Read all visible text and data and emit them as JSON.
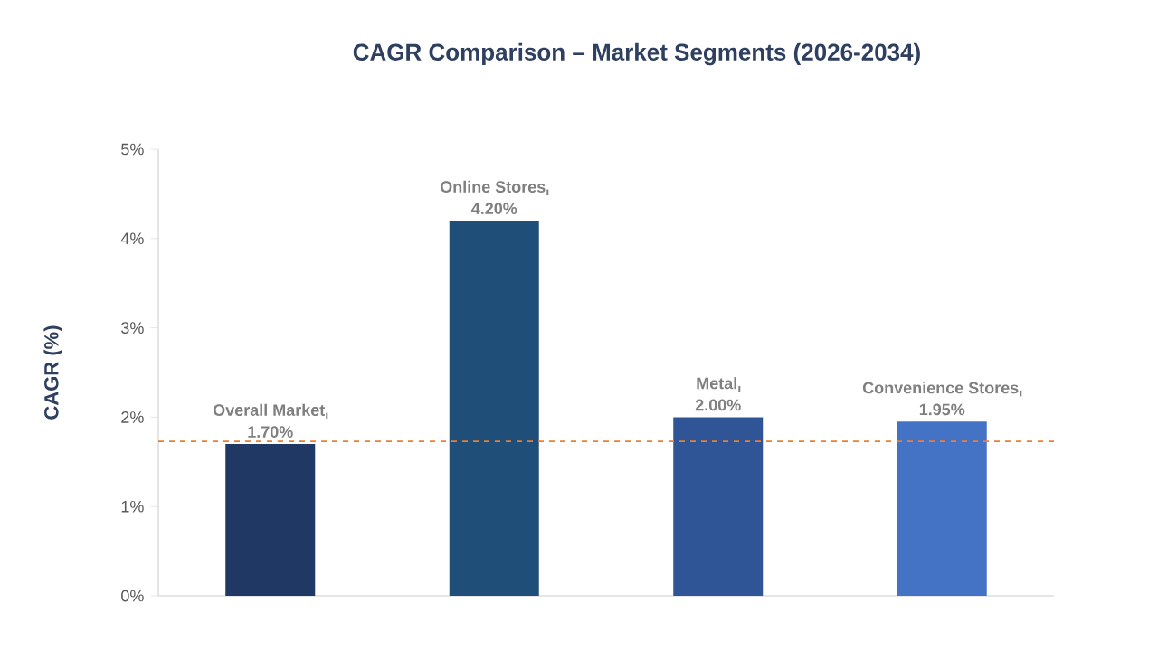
{
  "chart_data": {
    "type": "bar",
    "title": "CAGR Comparison – Market Segments (2026-2034)",
    "ylabel": "CAGR (%)",
    "categories": [
      "Overall Market",
      "Online Stores",
      "Metal",
      "Convenience Stores"
    ],
    "values": [
      1.7,
      4.2,
      2.0,
      1.95
    ],
    "value_labels": [
      "1.70%",
      "4.20%",
      "2.00%",
      "1.95%"
    ],
    "colors": [
      "#1f3864",
      "#1f4e79",
      "#2f5597",
      "#4472c4"
    ],
    "ylim": [
      0,
      5
    ],
    "yticks": [
      {
        "value": 0,
        "label": "0%"
      },
      {
        "value": 1,
        "label": "1%"
      },
      {
        "value": 2,
        "label": "2%"
      },
      {
        "value": 3,
        "label": "3%"
      },
      {
        "value": 4,
        "label": "4%"
      },
      {
        "value": 5,
        "label": "5%"
      }
    ],
    "ref_lines": [
      {
        "axis": "y",
        "value": 1.73,
        "color": "#ed7d31",
        "line_style": "dashed"
      }
    ]
  }
}
